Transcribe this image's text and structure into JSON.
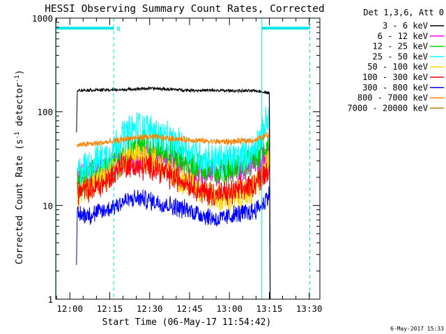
{
  "chart_data": {
    "type": "line",
    "title": "HESSI Observing Summary Count Rates, Corrected",
    "xlabel": "Start Time (06-May-17 11:54:42)",
    "ylabel_main": "Corrected Count Rate (s",
    "ylabel_sup1": "-1",
    "ylabel_mid": " detector",
    "ylabel_sup2": "-1",
    "ylabel_end": ")",
    "yscale": "log",
    "ylim": [
      1,
      1000
    ],
    "xlim": [
      "11:54:42",
      "13:34:00"
    ],
    "xlim_min": [
      714.7,
      814
    ],
    "x_ticks": [
      {
        "label": "12:00",
        "min": 720
      },
      {
        "label": "12:15",
        "min": 735
      },
      {
        "label": "12:30",
        "min": 750
      },
      {
        "label": "12:45",
        "min": 765
      },
      {
        "label": "13:00",
        "min": 780
      },
      {
        "label": "13:15",
        "min": 795
      },
      {
        "label": "13:30",
        "min": 810
      }
    ],
    "y_ticks": [
      {
        "label": "1",
        "value": 1
      },
      {
        "label": "10",
        "value": 10
      },
      {
        "label": "100",
        "value": 100
      },
      {
        "label": "1000",
        "value": 1000
      }
    ],
    "legend_header": "Det 1,3,6, Att 0",
    "legend_placement": "right",
    "timestamp": "6-May-2017 15:33",
    "night_label": "N",
    "bar_y_value": 780,
    "bars": [
      [
        714.8,
        736.5
      ],
      [
        792.2,
        810.2
      ]
    ],
    "dashed_lines": [
      736.5,
      810.2
    ],
    "solid_lines": [
      714.8,
      792.2
    ],
    "series": [
      {
        "name": "3 - 6 keV",
        "color": "#000000",
        "points": [
          [
            722.5,
            60
          ],
          [
            722.8,
            170
          ],
          [
            740,
            172
          ],
          [
            750,
            178
          ],
          [
            765,
            170
          ],
          [
            780,
            168
          ],
          [
            790,
            167
          ],
          [
            795,
            160
          ],
          [
            795.3,
            1
          ]
        ]
      },
      {
        "name": "6 - 12 keV",
        "color": "#ff00ff",
        "points": [
          [
            722.8,
            20
          ],
          [
            728,
            23
          ],
          [
            733,
            26
          ],
          [
            740,
            30
          ],
          [
            746,
            32
          ],
          [
            752,
            34
          ],
          [
            760,
            28
          ],
          [
            768,
            24
          ],
          [
            776,
            22
          ],
          [
            784,
            24
          ],
          [
            790,
            28
          ],
          [
            795,
            36
          ]
        ]
      },
      {
        "name": "12 - 25 keV",
        "color": "#00cc00",
        "points": [
          [
            722.8,
            18
          ],
          [
            730,
            22
          ],
          [
            736,
            26
          ],
          [
            742,
            38
          ],
          [
            748,
            45
          ],
          [
            754,
            40
          ],
          [
            760,
            32
          ],
          [
            768,
            26
          ],
          [
            776,
            24
          ],
          [
            784,
            26
          ],
          [
            790,
            32
          ],
          [
            795,
            45
          ]
        ]
      },
      {
        "name": "25 - 50 keV",
        "color": "#00ffff",
        "points": [
          [
            722.8,
            22
          ],
          [
            728,
            28
          ],
          [
            734,
            34
          ],
          [
            740,
            55
          ],
          [
            746,
            70
          ],
          [
            752,
            60
          ],
          [
            758,
            48
          ],
          [
            764,
            40
          ],
          [
            770,
            32
          ],
          [
            776,
            30
          ],
          [
            782,
            32
          ],
          [
            788,
            36
          ],
          [
            792,
            55
          ],
          [
            795,
            90
          ]
        ]
      },
      {
        "name": "50 - 100 keV",
        "color": "#ffd400",
        "points": [
          [
            722.8,
            12
          ],
          [
            728,
            16
          ],
          [
            734,
            20
          ],
          [
            740,
            30
          ],
          [
            746,
            35
          ],
          [
            752,
            30
          ],
          [
            758,
            22
          ],
          [
            764,
            18
          ],
          [
            770,
            14
          ],
          [
            776,
            12
          ],
          [
            782,
            12
          ],
          [
            788,
            14
          ],
          [
            792,
            20
          ],
          [
            795,
            30
          ]
        ]
      },
      {
        "name": "100 - 300 keV",
        "color": "#ff0000",
        "points": [
          [
            722.8,
            14
          ],
          [
            728,
            15
          ],
          [
            734,
            18
          ],
          [
            740,
            28
          ],
          [
            746,
            25
          ],
          [
            752,
            26
          ],
          [
            758,
            20
          ],
          [
            764,
            18
          ],
          [
            770,
            14
          ],
          [
            776,
            13
          ],
          [
            782,
            14
          ],
          [
            788,
            16
          ],
          [
            792,
            20
          ],
          [
            795,
            26
          ]
        ]
      },
      {
        "name": "300 - 800 keV",
        "color": "#0000ff",
        "points": [
          [
            722.5,
            2
          ],
          [
            722.8,
            8
          ],
          [
            728,
            8
          ],
          [
            734,
            9
          ],
          [
            740,
            11
          ],
          [
            746,
            12
          ],
          [
            752,
            11
          ],
          [
            758,
            10
          ],
          [
            764,
            9
          ],
          [
            770,
            8
          ],
          [
            776,
            7
          ],
          [
            782,
            8
          ],
          [
            788,
            8.5
          ],
          [
            792,
            10
          ],
          [
            795,
            13
          ]
        ]
      },
      {
        "name": "800 - 7000 keV",
        "color": "#ff8000",
        "points": [
          [
            722.8,
            44
          ],
          [
            730,
            46
          ],
          [
            736,
            48
          ],
          [
            742,
            52
          ],
          [
            750,
            54
          ],
          [
            758,
            52
          ],
          [
            766,
            50
          ],
          [
            774,
            48
          ],
          [
            782,
            48
          ],
          [
            790,
            50
          ],
          [
            795,
            58
          ]
        ]
      },
      {
        "name": "7000 - 20000 keV",
        "color": "#b08000",
        "points": []
      }
    ]
  }
}
